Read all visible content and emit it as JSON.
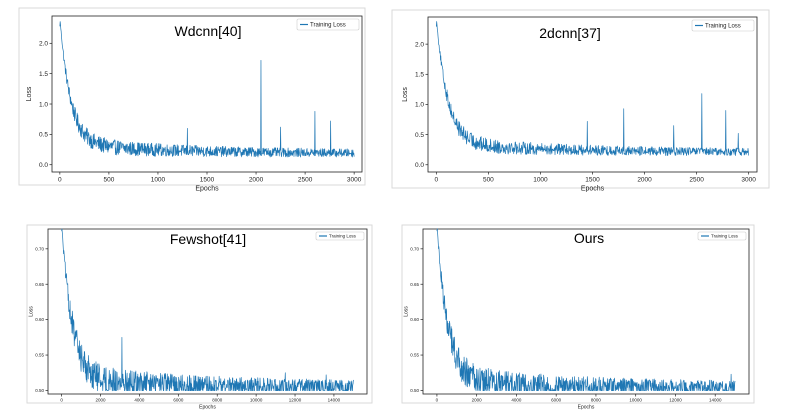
{
  "chart_data": [
    {
      "type": "line",
      "title": "Wdcnn[40]",
      "xlabel": "Epochs",
      "ylabel": "Loss",
      "legend": {
        "entries": [
          "Training Loss"
        ],
        "placement": "top-right"
      },
      "xlim": [
        -80,
        3080
      ],
      "ylim": [
        -0.12,
        2.45
      ],
      "xticks": [
        0,
        500,
        1000,
        1500,
        2000,
        2500,
        3000
      ],
      "yticks": [
        0.0,
        0.5,
        1.0,
        1.5,
        2.0
      ],
      "ytick_labels": [
        "0.0",
        "0.5",
        "1.0",
        "1.5",
        "2.0"
      ],
      "grid": false,
      "color": "#1f77b4",
      "series": [
        {
          "name": "Training Loss",
          "x_end": 3000,
          "start": 2.28,
          "floor": 0.18,
          "settle": 0.42,
          "noise": 0.32,
          "spikes": [
            [
              2050,
              1.72
            ],
            [
              2600,
              0.88
            ],
            [
              2760,
              0.72
            ],
            [
              2250,
              0.62
            ],
            [
              1300,
              0.6
            ]
          ]
        }
      ]
    },
    {
      "type": "line",
      "title": "2dcnn[37]",
      "xlabel": "Epochs",
      "ylabel": "Loss",
      "legend": {
        "entries": [
          "Training Loss"
        ],
        "placement": "top-right"
      },
      "xlim": [
        -80,
        3080
      ],
      "ylim": [
        -0.12,
        2.45
      ],
      "xticks": [
        0,
        500,
        1000,
        1500,
        2000,
        2500,
        3000
      ],
      "yticks": [
        0.0,
        0.5,
        1.0,
        1.5,
        2.0
      ],
      "ytick_labels": [
        "0.0",
        "0.5",
        "1.0",
        "1.5",
        "2.0"
      ],
      "grid": false,
      "color": "#1f77b4",
      "series": [
        {
          "name": "Training Loss",
          "x_end": 3000,
          "start": 2.29,
          "floor": 0.2,
          "settle": 0.42,
          "noise": 0.3,
          "spikes": [
            [
              2550,
              1.18
            ],
            [
              1800,
              0.93
            ],
            [
              2780,
              0.9
            ],
            [
              2280,
              0.65
            ],
            [
              1450,
              0.72
            ],
            [
              2900,
              0.52
            ]
          ]
        }
      ]
    },
    {
      "type": "line",
      "title": "Fewshot[41]",
      "xlabel": "Epochs",
      "ylabel": "Loss",
      "legend": {
        "entries": [
          "Training Loss"
        ],
        "placement": "top-right"
      },
      "xlim": [
        -700,
        15700
      ],
      "ylim": [
        0.495,
        0.728
      ],
      "xticks": [
        0,
        2000,
        4000,
        6000,
        8000,
        10000,
        12000,
        14000
      ],
      "yticks": [
        0.5,
        0.55,
        0.6,
        0.65,
        0.7
      ],
      "ytick_labels": [
        "0.50",
        "0.55",
        "0.60",
        "0.65",
        "0.70"
      ],
      "grid": false,
      "color": "#1f77b4",
      "series": [
        {
          "name": "Training Loss",
          "x_end": 15000,
          "start": 0.725,
          "floor": 0.503,
          "settle": 0.03,
          "noise": 0.05,
          "spikes": [
            [
              3100,
              0.575
            ],
            [
              11500,
              0.525
            ],
            [
              13600,
              0.522
            ],
            [
              5800,
              0.52
            ]
          ]
        }
      ]
    },
    {
      "type": "line",
      "title": "Ours",
      "xlabel": "Epochs",
      "ylabel": "Loss",
      "legend": {
        "entries": [
          "Training Loss"
        ],
        "placement": "top-right"
      },
      "xlim": [
        -700,
        15700
      ],
      "ylim": [
        0.495,
        0.728
      ],
      "xticks": [
        0,
        2000,
        4000,
        6000,
        8000,
        10000,
        12000,
        14000
      ],
      "yticks": [
        0.5,
        0.55,
        0.6,
        0.65,
        0.7
      ],
      "ytick_labels": [
        "0.50",
        "0.55",
        "0.60",
        "0.65",
        "0.70"
      ],
      "grid": false,
      "color": "#1f77b4",
      "series": [
        {
          "name": "Training Loss",
          "x_end": 15000,
          "start": 0.725,
          "floor": 0.502,
          "settle": 0.028,
          "noise": 0.05,
          "spikes": [
            [
              14800,
              0.523
            ],
            [
              11400,
              0.515
            ],
            [
              9600,
              0.512
            ],
            [
              12500,
              0.511
            ]
          ]
        }
      ]
    }
  ]
}
